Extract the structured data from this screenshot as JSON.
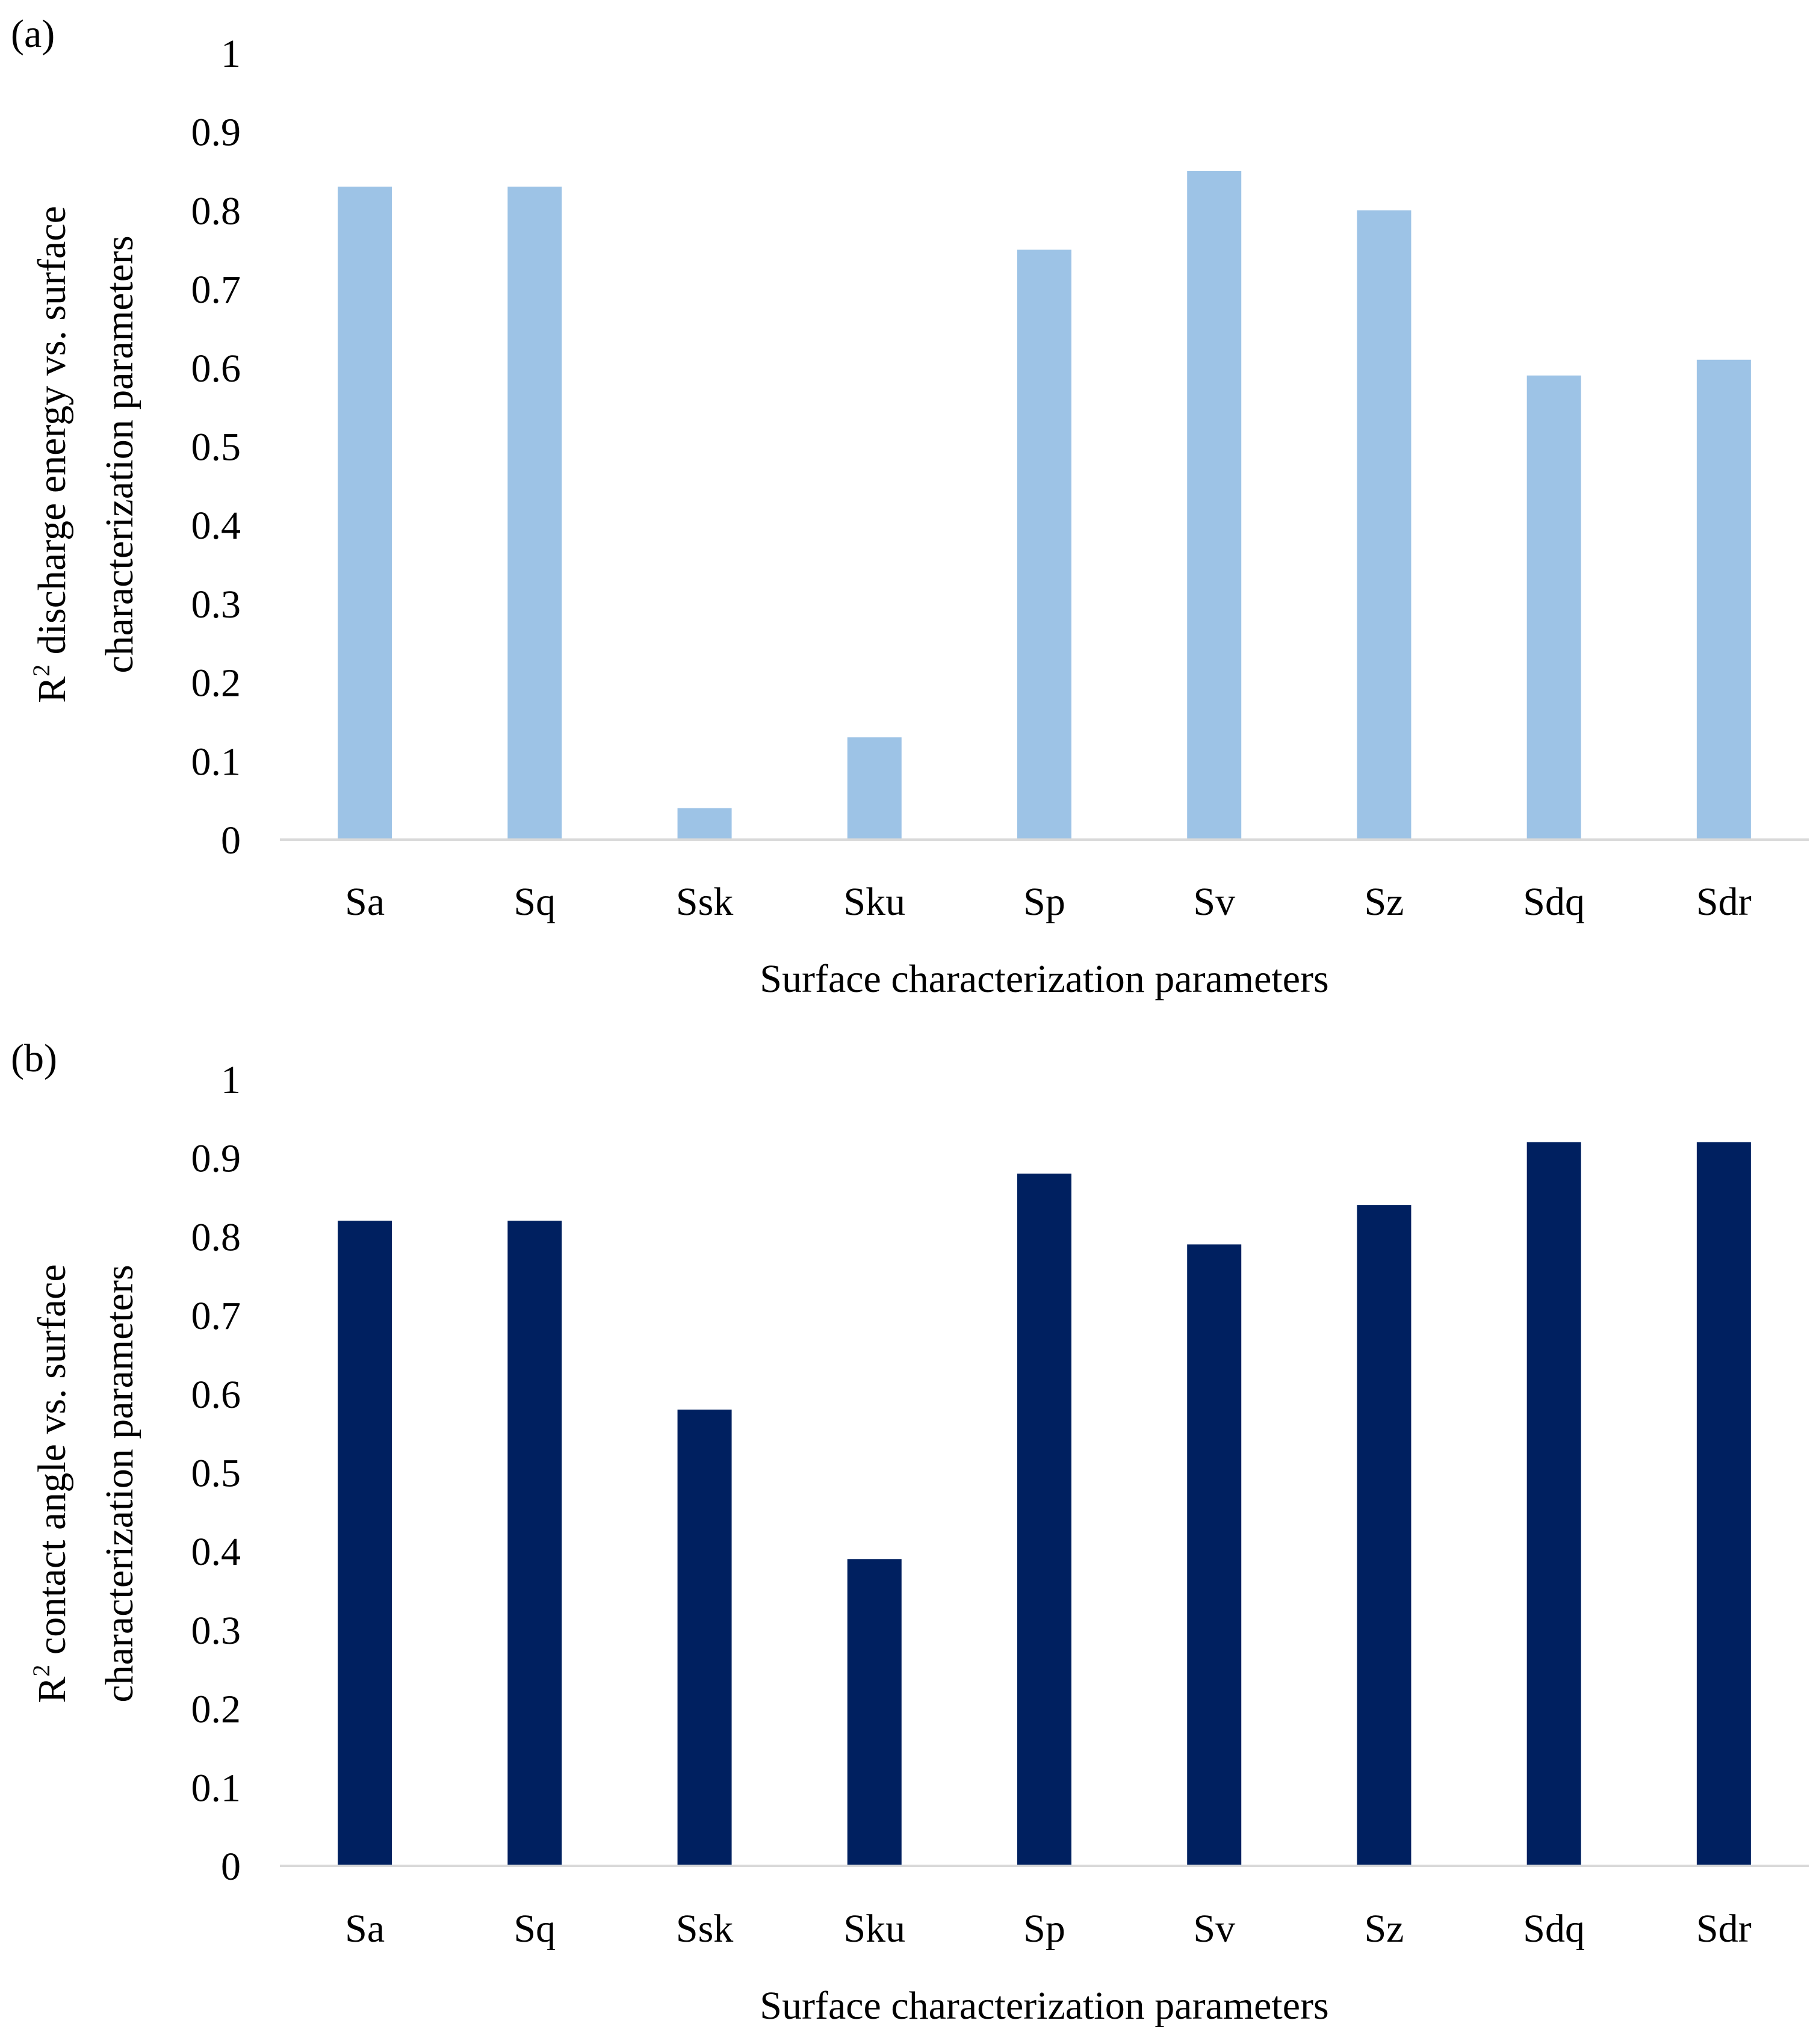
{
  "chart_data": [
    {
      "panel_label": "(a)",
      "type": "bar",
      "categories": [
        "Sa",
        "Sq",
        "Ssk",
        "Sku",
        "Sp",
        "Sv",
        "Sz",
        "Sdq",
        "Sdr"
      ],
      "values": [
        0.83,
        0.83,
        0.04,
        0.13,
        0.75,
        0.85,
        0.8,
        0.59,
        0.61
      ],
      "yticks": [
        "0",
        "0.1",
        "0.2",
        "0.3",
        "0.4",
        "0.5",
        "0.6",
        "0.7",
        "0.8",
        "0.9",
        "1"
      ],
      "ylim": [
        0,
        1
      ],
      "xlabel": "Surface characterization parameters",
      "ylabel_r": "R",
      "ylabel_sup": "2",
      "ylabel_line1": " discharge energy vs. surface",
      "ylabel_line2": "characterization parameters",
      "bar_color": "#9dc3e6"
    },
    {
      "panel_label": "(b)",
      "type": "bar",
      "categories": [
        "Sa",
        "Sq",
        "Ssk",
        "Sku",
        "Sp",
        "Sv",
        "Sz",
        "Sdq",
        "Sdr"
      ],
      "values": [
        0.82,
        0.82,
        0.58,
        0.39,
        0.88,
        0.79,
        0.84,
        0.92,
        0.92
      ],
      "yticks": [
        "0",
        "0.1",
        "0.2",
        "0.3",
        "0.4",
        "0.5",
        "0.6",
        "0.7",
        "0.8",
        "0.9",
        "1"
      ],
      "ylim": [
        0,
        1
      ],
      "xlabel": "Surface characterization parameters",
      "ylabel_r": "R",
      "ylabel_sup": "2",
      "ylabel_line1": " contact angle vs. surface",
      "ylabel_line2": "characterization parameters",
      "bar_color": "#002060"
    }
  ]
}
